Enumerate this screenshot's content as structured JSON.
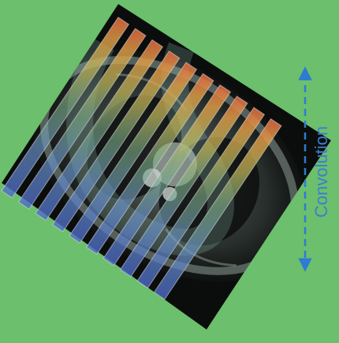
{
  "figure": {
    "background_color": "#6cbf6c",
    "arrow_color": "#2e7bd1",
    "label_color": "#3a7fd0",
    "slice_count": 10,
    "annotation_label": "Convolution"
  }
}
